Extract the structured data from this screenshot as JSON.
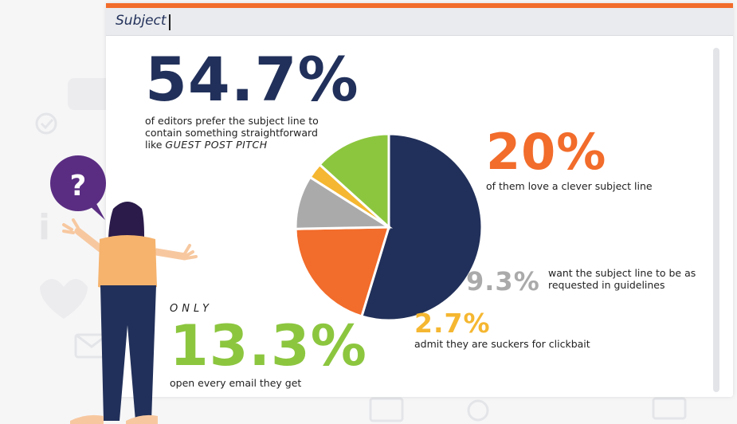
{
  "email": {
    "subject_label": "Subject"
  },
  "stats": {
    "straightforward": {
      "value": "54.7%",
      "caption_lines": [
        "of editors prefer the subject line to",
        "contain something straightforward"
      ],
      "caption_line3_prefix": "like ",
      "caption_example": "GUEST POST PITCH"
    },
    "clever": {
      "value": "20%",
      "caption": "of them love a clever subject line"
    },
    "as_requested": {
      "value": "9.3%",
      "caption": "want the subject line to be as requested in guidelines"
    },
    "clickbait": {
      "value": "2.7%",
      "caption": "admit they are suckers for clickbait"
    },
    "open_every": {
      "prefix": "ONLY",
      "value": "13.3%",
      "caption": "open every email they get"
    }
  },
  "chart_data": {
    "type": "pie",
    "categories": [
      "prefer something straightforward",
      "love a clever subject line",
      "want the subject line as requested in guidelines",
      "suckers for clickbait",
      "open every email they get"
    ],
    "values": [
      54.7,
      20,
      9.3,
      2.7,
      13.3
    ],
    "colors": [
      "#21305a",
      "#f26c2b",
      "#aaaaaa",
      "#f5b731",
      "#8cc63f"
    ],
    "start_angle_deg": 90,
    "direction": "clockwise"
  },
  "colors": {
    "accent": "#f26c2b",
    "navy": "#21305a",
    "purple": "#5a2d82",
    "green": "#8cc63f",
    "yellow": "#f5b731",
    "gray": "#aaaaaa"
  },
  "icons": {
    "question_bubble": "question-mark-bubble",
    "background": [
      "heart-icon",
      "envelope-icon",
      "check-icon",
      "info-icon"
    ]
  },
  "illustration": {
    "question_mark": "?"
  }
}
